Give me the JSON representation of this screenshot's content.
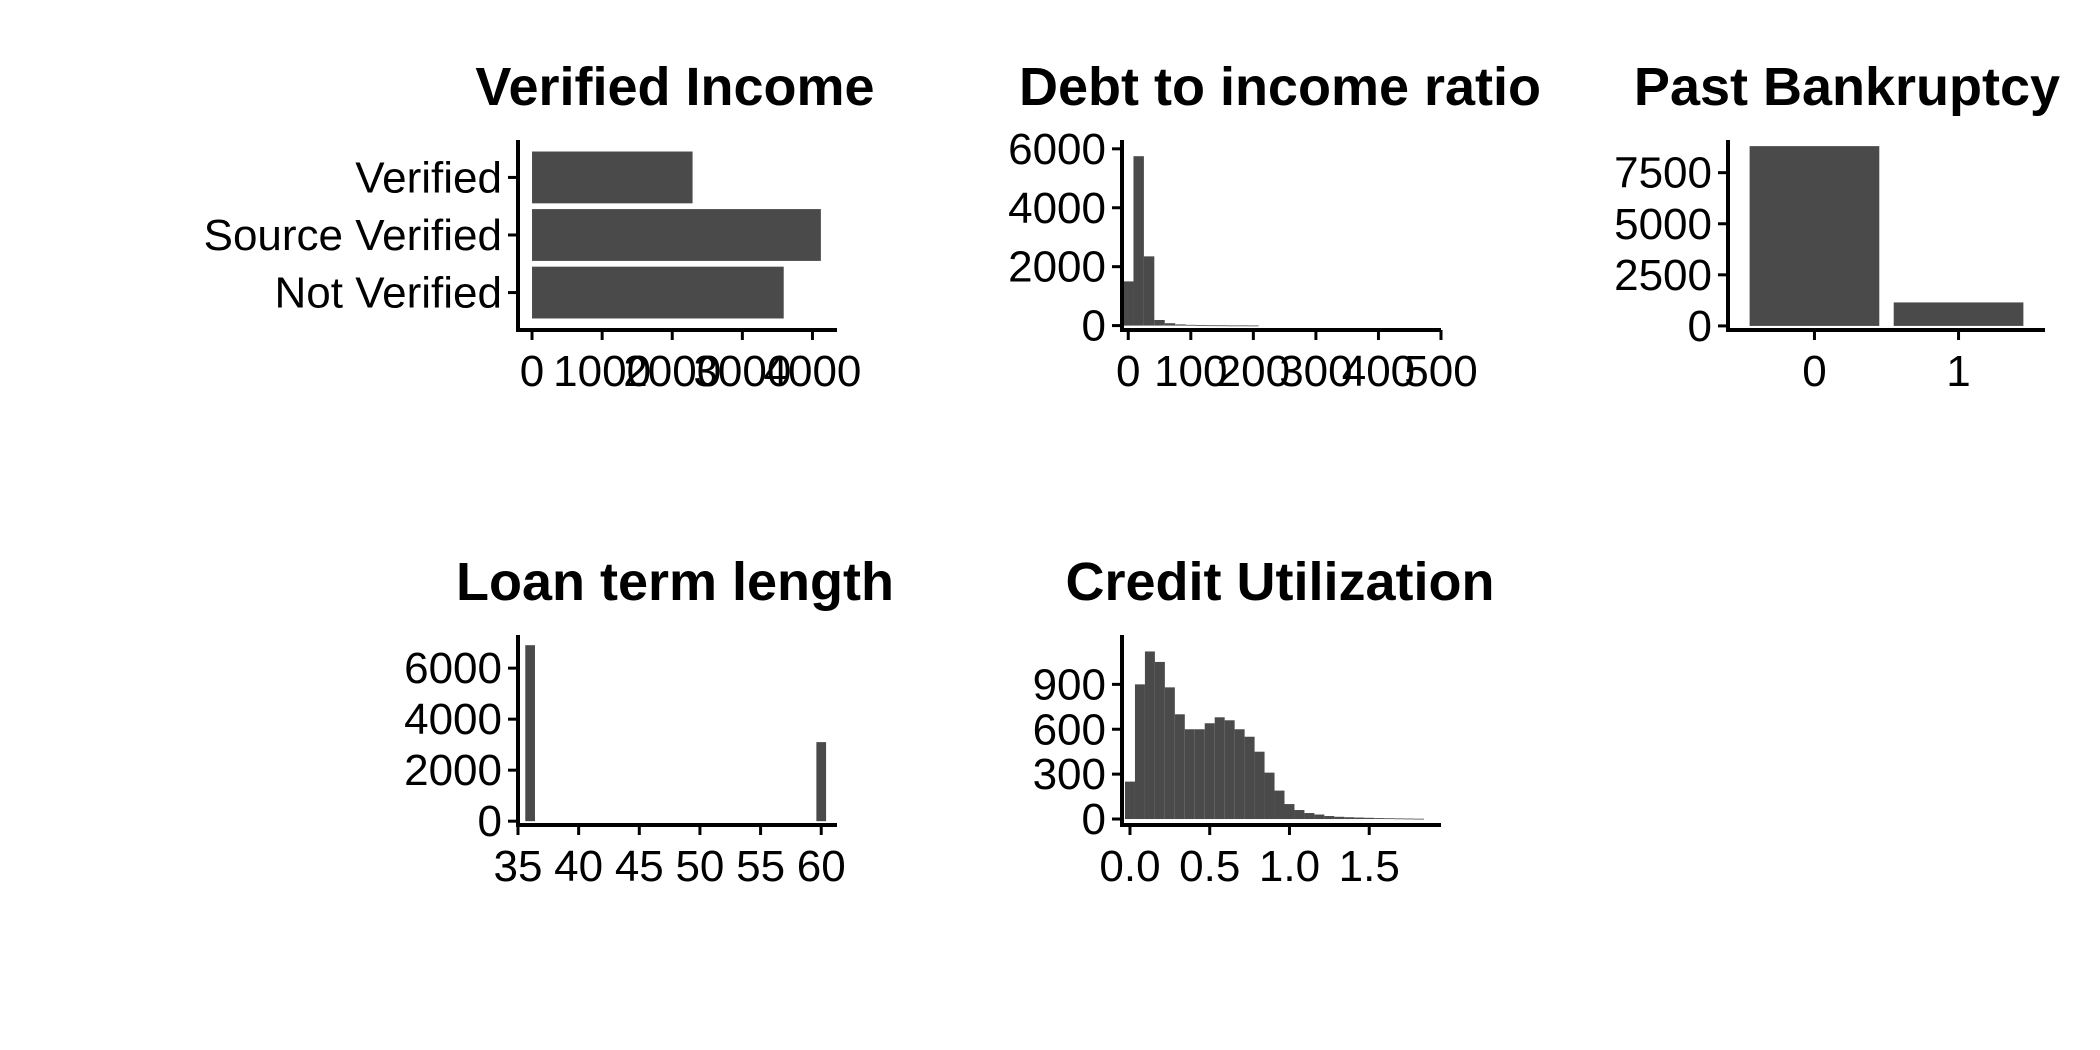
{
  "theme": {
    "bar_color": "#4a4a4a",
    "axis_color": "#000000",
    "background": "#ffffff"
  },
  "chart_data": [
    {
      "id": "verified-income",
      "type": "bar",
      "orientation": "horizontal",
      "title": "Verified Income",
      "categories": [
        "Not Verified",
        "Source Verified",
        "Verified"
      ],
      "values": [
        3590,
        4120,
        2290
      ],
      "xlim": [
        -200,
        4350
      ],
      "xticks": [
        0,
        1000,
        2000,
        3000,
        4000
      ],
      "xtick_labels": [
        "0",
        "1000",
        "2000",
        "3000",
        "4000"
      ],
      "xlabel": "",
      "ylabel": "",
      "grid": false
    },
    {
      "id": "debt-to-income",
      "type": "bar",
      "subtype": "histogram",
      "title": "Debt to income ratio",
      "bin_width": 16.67,
      "bin_starts": [
        -8.33,
        8.33,
        25,
        41.67,
        58.33,
        75,
        91.67,
        108.33,
        125,
        141.67,
        158.33,
        175,
        191.67
      ],
      "values": [
        1500,
        5750,
        2350,
        190,
        80,
        40,
        25,
        15,
        10,
        8,
        5,
        5,
        3
      ],
      "xlim": [
        -10,
        500
      ],
      "ylim": [
        -150,
        6300
      ],
      "xticks": [
        0,
        100,
        200,
        300,
        400,
        500
      ],
      "xtick_labels": [
        "0",
        "100",
        "200",
        "300",
        "400",
        "500"
      ],
      "yticks": [
        0,
        2000,
        4000,
        6000
      ],
      "ytick_labels": [
        "0",
        "2000",
        "4000",
        "6000"
      ],
      "xlabel": "",
      "ylabel": "",
      "grid": false
    },
    {
      "id": "past-bankruptcy",
      "type": "bar",
      "title": "Past Bankruptcy",
      "categories": [
        "0",
        "1"
      ],
      "values": [
        8800,
        1150
      ],
      "ylim": [
        -200,
        9100
      ],
      "yticks": [
        0,
        2500,
        5000,
        7500
      ],
      "ytick_labels": [
        "0",
        "2500",
        "5000",
        "7500"
      ],
      "xlabel": "",
      "ylabel": "",
      "grid": false
    },
    {
      "id": "loan-term",
      "type": "bar",
      "subtype": "histogram",
      "title": "Loan term length",
      "bin_width": 0.8,
      "bin_starts": [
        35.6,
        59.6
      ],
      "values": [
        6900,
        3100
      ],
      "xlim": [
        35,
        61.3
      ],
      "ylim": [
        -150,
        7300
      ],
      "xticks": [
        35,
        40,
        45,
        50,
        55,
        60
      ],
      "xtick_labels": [
        "35",
        "40",
        "45",
        "50",
        "55",
        "60"
      ],
      "yticks": [
        0,
        2000,
        4000,
        6000
      ],
      "ytick_labels": [
        "0",
        "2000",
        "4000",
        "6000"
      ],
      "xlabel": "",
      "ylabel": "",
      "grid": false
    },
    {
      "id": "credit-utilization",
      "type": "bar",
      "subtype": "histogram",
      "title": "Credit Utilization",
      "bin_width": 0.0625,
      "bin_starts": [
        -0.03125,
        0.03125,
        0.09375,
        0.15625,
        0.21875,
        0.28125,
        0.34375,
        0.40625,
        0.46875,
        0.53125,
        0.59375,
        0.65625,
        0.71875,
        0.78125,
        0.84375,
        0.90625,
        0.96875,
        1.03125,
        1.09375,
        1.15625,
        1.21875,
        1.28125,
        1.34375,
        1.40625,
        1.46875,
        1.53125,
        1.59375,
        1.65625,
        1.71875,
        1.78125
      ],
      "values": [
        250,
        900,
        1120,
        1050,
        880,
        700,
        600,
        600,
        640,
        680,
        660,
        600,
        550,
        450,
        310,
        190,
        100,
        60,
        40,
        30,
        20,
        15,
        12,
        10,
        8,
        6,
        5,
        4,
        3,
        2
      ],
      "xlim": [
        -0.05,
        1.95
      ],
      "ylim": [
        -40,
        1230
      ],
      "xticks": [
        0.0,
        0.5,
        1.0,
        1.5
      ],
      "xtick_labels": [
        "0.0",
        "0.5",
        "1.0",
        "1.5"
      ],
      "yticks": [
        0,
        300,
        600,
        900
      ],
      "ytick_labels": [
        "0",
        "300",
        "600",
        "900"
      ],
      "xlabel": "",
      "ylabel": "",
      "grid": false
    }
  ]
}
